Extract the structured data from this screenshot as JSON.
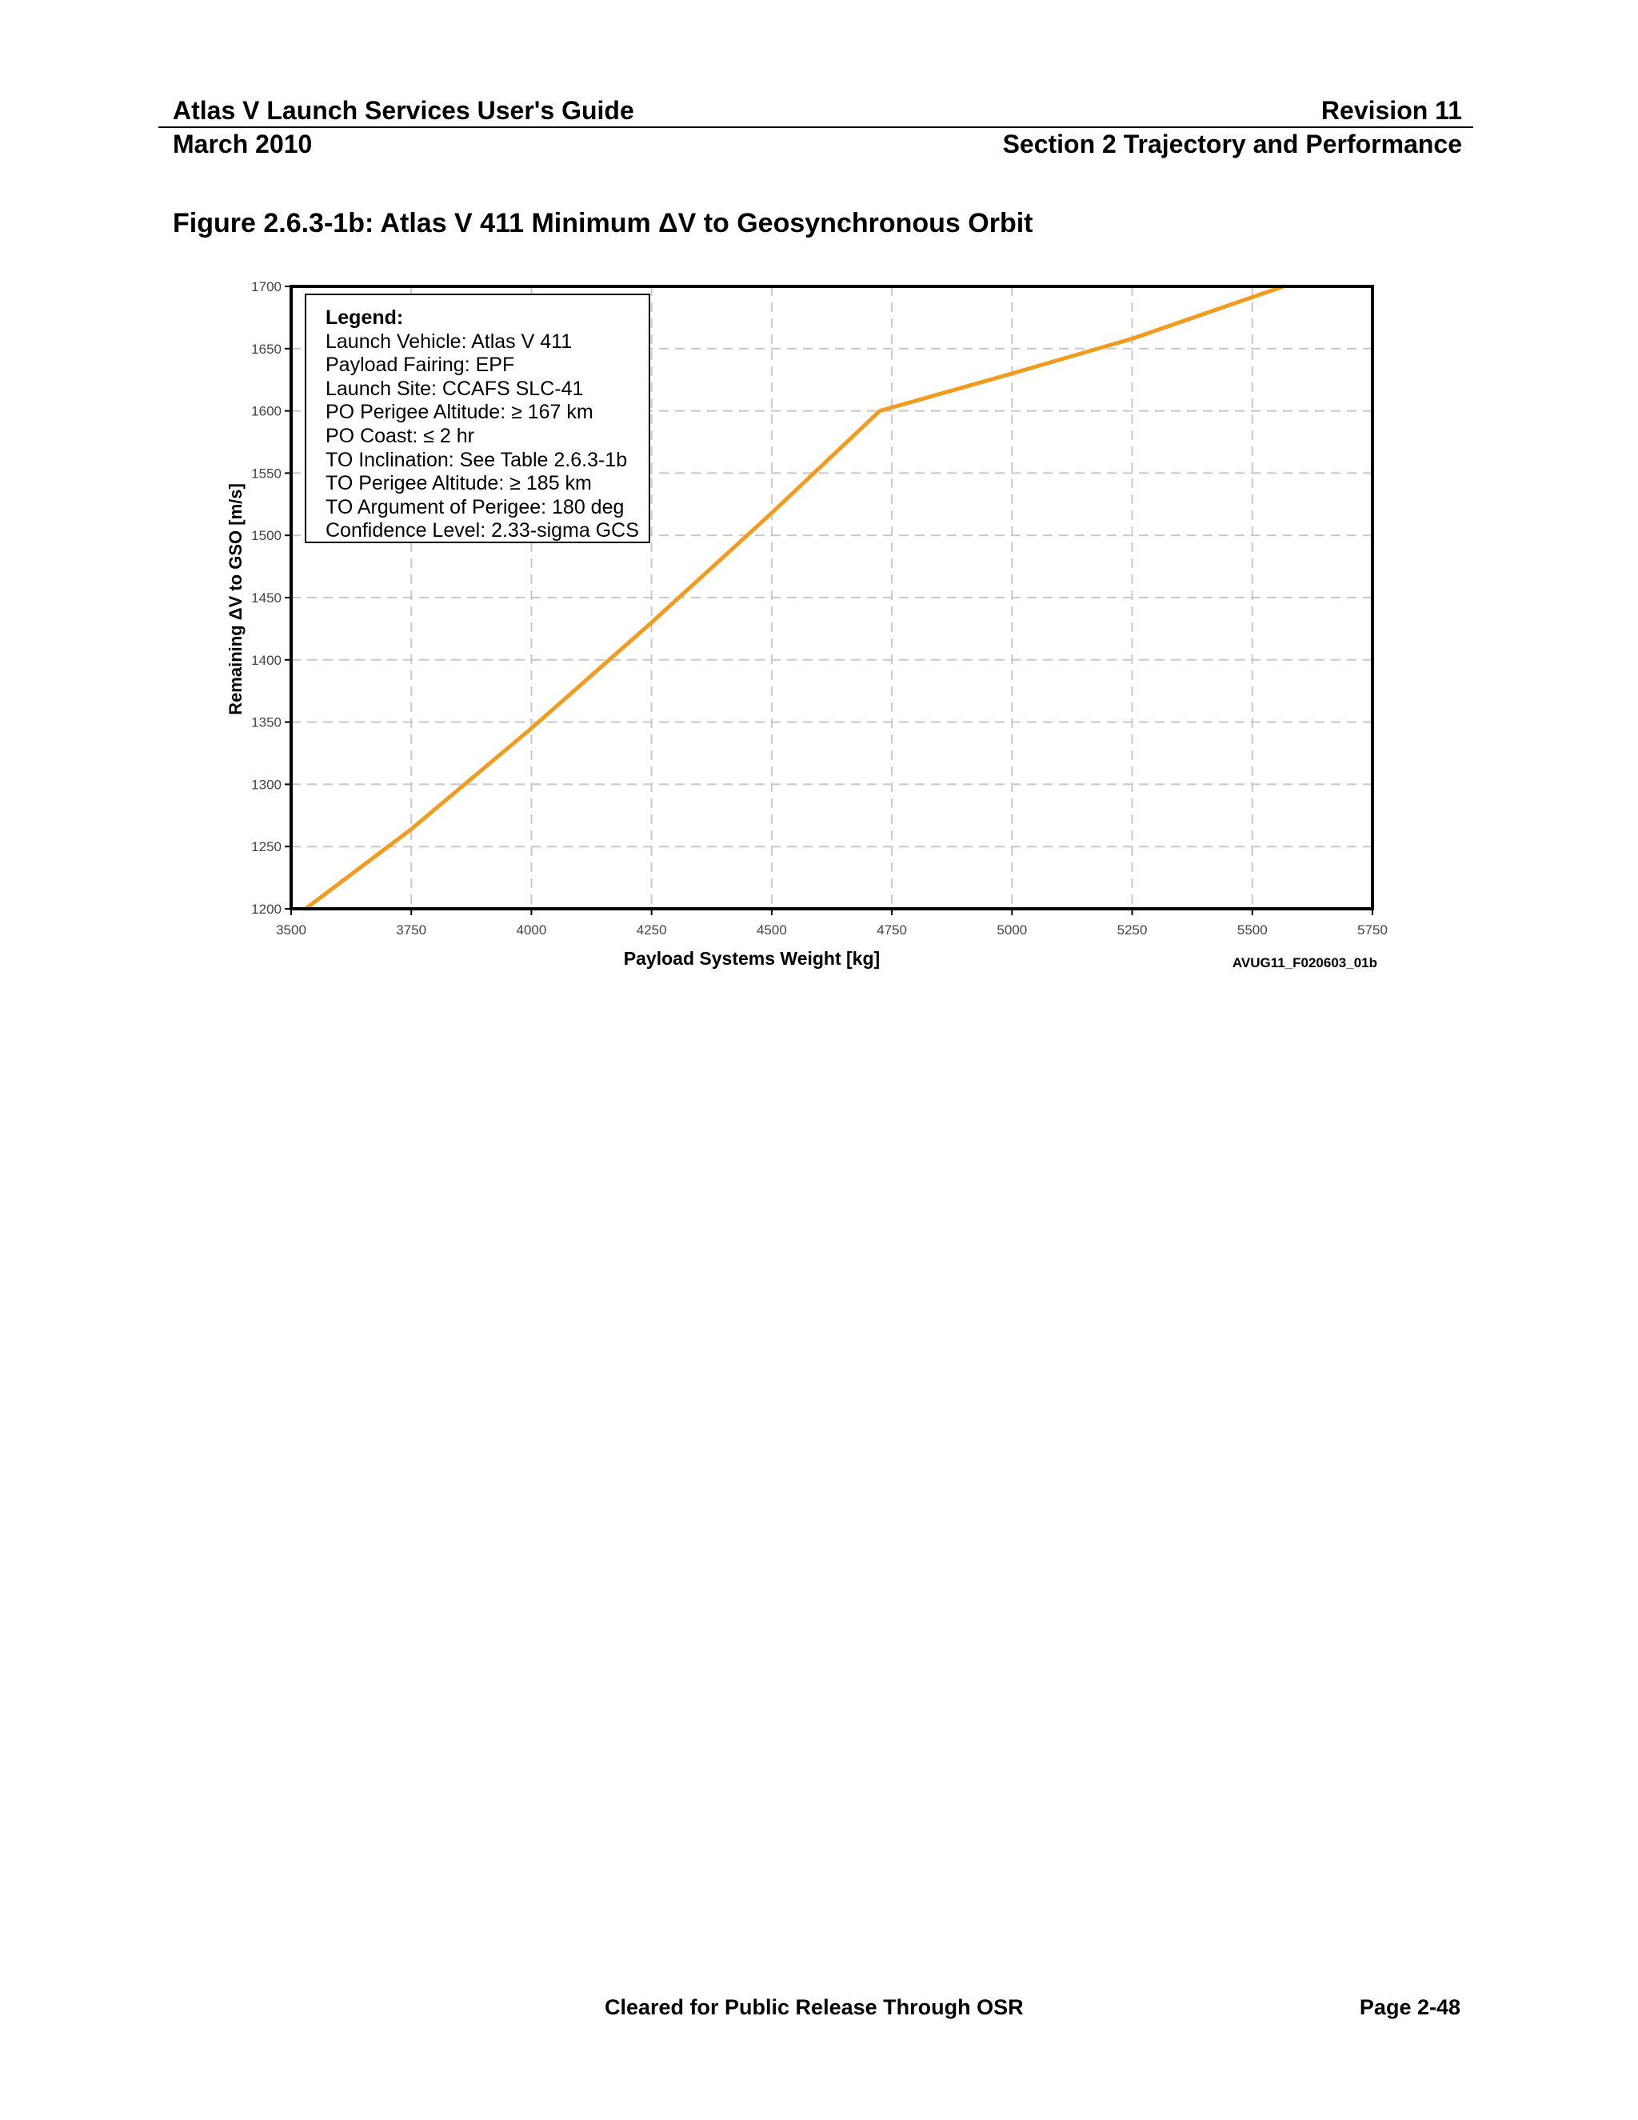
{
  "header": {
    "doc_title": "Atlas V Launch Services User's Guide",
    "revision": "Revision 11",
    "date": "March 2010",
    "section": "Section 2 Trajectory and Performance"
  },
  "figure": {
    "title": "Figure 2.6.3-1b: Atlas V 411 Minimum ΔV to Geosynchronous Orbit",
    "figure_id": "AVUG11_F020603_01b"
  },
  "legend": {
    "title": "Legend:",
    "lines": [
      "Launch Vehicle: Atlas V 411",
      "Payload Fairing: EPF",
      "Launch Site: CCAFS SLC-41",
      "PO Perigee Altitude: ≥ 167 km",
      "PO Coast: ≤ 2 hr",
      "TO Inclination: See Table 2.6.3-1b",
      "TO Perigee Altitude: ≥ 185 km",
      "TO Argument of Perigee: 180 deg",
      "Confidence Level: 2.33-sigma GCS"
    ]
  },
  "chart_data": {
    "type": "line",
    "title": "",
    "xlabel": "Payload Systems Weight [kg]",
    "ylabel": "Remaining ΔV to GSO [m/s]",
    "xlim": [
      3500,
      5750
    ],
    "ylim": [
      1200,
      1700
    ],
    "xticks": [
      3500,
      3750,
      4000,
      4250,
      4500,
      4750,
      5000,
      5250,
      5500,
      5750
    ],
    "yticks": [
      1200,
      1250,
      1300,
      1350,
      1400,
      1450,
      1500,
      1550,
      1600,
      1650,
      1700
    ],
    "grid": true,
    "legend_placement": "top-left",
    "series": [
      {
        "color": "#f29c1f",
        "x": [
          3530,
          3750,
          4000,
          4250,
          4500,
          4725,
          5000,
          5250,
          5565
        ],
        "y": [
          1200,
          1264,
          1345,
          1430,
          1518,
          1600,
          1630,
          1658,
          1700
        ]
      }
    ]
  },
  "footer": {
    "release": "Cleared for Public Release Through OSR",
    "page": "Page 2-48"
  }
}
